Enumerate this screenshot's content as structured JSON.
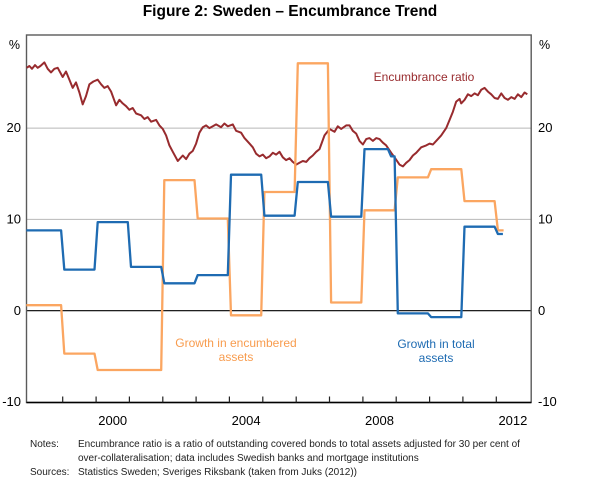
{
  "title": "Figure 2: Sweden – Encumbrance Trend",
  "chart_data": {
    "type": "line",
    "x_axis": {
      "min": 1997.91,
      "max": 2013.04,
      "tick_years": [
        1999,
        2000,
        2001,
        2002,
        2003,
        2004,
        2005,
        2006,
        2007,
        2008,
        2009,
        2010,
        2011,
        2012
      ],
      "labels": [
        "2000",
        "2004",
        "2008",
        "2012"
      ],
      "label_center_years": [
        2000.5,
        2004.5,
        2008.5,
        2012.5
      ]
    },
    "y_axis": {
      "min": -10,
      "max": 30.2,
      "unit": "%",
      "tick_labels": [
        "20",
        "10",
        "0",
        "-10"
      ],
      "tick_values": [
        20,
        10,
        0,
        -10
      ],
      "gridline_values": [
        20,
        10
      ],
      "zero_line": true
    },
    "series": [
      {
        "name": "Encumbrance ratio",
        "color": "#982b2e",
        "style": "line",
        "label_lines": [
          "Encumbrance ratio"
        ],
        "points": [
          [
            1997.92,
            26.6
          ],
          [
            1998.0,
            26.8
          ],
          [
            1998.08,
            26.5
          ],
          [
            1998.17,
            26.9
          ],
          [
            1998.25,
            26.6
          ],
          [
            1998.33,
            26.8
          ],
          [
            1998.45,
            27.2
          ],
          [
            1998.55,
            26.5
          ],
          [
            1998.65,
            26.1
          ],
          [
            1998.75,
            26.5
          ],
          [
            1998.85,
            26.6
          ],
          [
            1999.0,
            25.6
          ],
          [
            1999.1,
            26.2
          ],
          [
            1999.2,
            25.3
          ],
          [
            1999.3,
            24.4
          ],
          [
            1999.4,
            25.0
          ],
          [
            1999.5,
            23.9
          ],
          [
            1999.6,
            22.6
          ],
          [
            1999.7,
            23.5
          ],
          [
            1999.8,
            24.8
          ],
          [
            1999.92,
            25.1
          ],
          [
            2000.05,
            25.3
          ],
          [
            2000.15,
            24.8
          ],
          [
            2000.25,
            24.4
          ],
          [
            2000.35,
            24.6
          ],
          [
            2000.45,
            24.0
          ],
          [
            2000.6,
            22.5
          ],
          [
            2000.7,
            23.1
          ],
          [
            2000.8,
            22.7
          ],
          [
            2000.9,
            22.4
          ],
          [
            2001.0,
            22.0
          ],
          [
            2001.1,
            22.2
          ],
          [
            2001.2,
            21.6
          ],
          [
            2001.35,
            21.4
          ],
          [
            2001.45,
            21.0
          ],
          [
            2001.55,
            21.2
          ],
          [
            2001.65,
            20.7
          ],
          [
            2001.8,
            20.9
          ],
          [
            2001.9,
            20.3
          ],
          [
            2002.0,
            19.9
          ],
          [
            2002.1,
            19.2
          ],
          [
            2002.2,
            18.1
          ],
          [
            2002.3,
            17.4
          ],
          [
            2002.45,
            16.4
          ],
          [
            2002.6,
            17.0
          ],
          [
            2002.7,
            16.6
          ],
          [
            2002.8,
            17.2
          ],
          [
            2002.9,
            17.5
          ],
          [
            2003.0,
            18.3
          ],
          [
            2003.1,
            19.5
          ],
          [
            2003.2,
            20.1
          ],
          [
            2003.3,
            20.3
          ],
          [
            2003.4,
            20.0
          ],
          [
            2003.5,
            20.2
          ],
          [
            2003.6,
            20.4
          ],
          [
            2003.75,
            20.1
          ],
          [
            2003.85,
            20.5
          ],
          [
            2003.95,
            20.2
          ],
          [
            2004.1,
            20.4
          ],
          [
            2004.2,
            19.7
          ],
          [
            2004.35,
            19.5
          ],
          [
            2004.45,
            18.9
          ],
          [
            2004.6,
            18.3
          ],
          [
            2004.7,
            17.9
          ],
          [
            2004.8,
            17.2
          ],
          [
            2004.9,
            16.9
          ],
          [
            2005.0,
            17.1
          ],
          [
            2005.1,
            16.7
          ],
          [
            2005.2,
            16.9
          ],
          [
            2005.3,
            17.3
          ],
          [
            2005.4,
            17.1
          ],
          [
            2005.5,
            17.4
          ],
          [
            2005.6,
            16.8
          ],
          [
            2005.7,
            16.5
          ],
          [
            2005.8,
            16.7
          ],
          [
            2005.9,
            16.3
          ],
          [
            2006.0,
            16.0
          ],
          [
            2006.1,
            16.2
          ],
          [
            2006.2,
            16.4
          ],
          [
            2006.3,
            16.3
          ],
          [
            2006.4,
            16.7
          ],
          [
            2006.5,
            17.0
          ],
          [
            2006.6,
            17.4
          ],
          [
            2006.7,
            17.7
          ],
          [
            2006.85,
            19.2
          ],
          [
            2007.0,
            19.9
          ],
          [
            2007.15,
            19.6
          ],
          [
            2007.25,
            20.2
          ],
          [
            2007.35,
            19.9
          ],
          [
            2007.5,
            20.3
          ],
          [
            2007.6,
            20.3
          ],
          [
            2007.7,
            19.7
          ],
          [
            2007.8,
            19.4
          ],
          [
            2007.9,
            18.6
          ],
          [
            2008.0,
            18.2
          ],
          [
            2008.1,
            18.8
          ],
          [
            2008.2,
            18.9
          ],
          [
            2008.3,
            18.6
          ],
          [
            2008.4,
            18.9
          ],
          [
            2008.5,
            18.8
          ],
          [
            2008.6,
            18.4
          ],
          [
            2008.7,
            18.1
          ],
          [
            2008.85,
            17.3
          ],
          [
            2008.95,
            16.8
          ],
          [
            2009.1,
            16.0
          ],
          [
            2009.2,
            15.8
          ],
          [
            2009.3,
            16.2
          ],
          [
            2009.4,
            16.5
          ],
          [
            2009.5,
            17.0
          ],
          [
            2009.6,
            17.3
          ],
          [
            2009.75,
            17.9
          ],
          [
            2009.9,
            18.1
          ],
          [
            2010.0,
            18.3
          ],
          [
            2010.1,
            18.2
          ],
          [
            2010.2,
            18.6
          ],
          [
            2010.35,
            19.2
          ],
          [
            2010.5,
            20.0
          ],
          [
            2010.6,
            20.9
          ],
          [
            2010.7,
            21.8
          ],
          [
            2010.8,
            22.9
          ],
          [
            2010.9,
            23.2
          ],
          [
            2010.95,
            22.7
          ],
          [
            2011.05,
            23.1
          ],
          [
            2011.15,
            23.7
          ],
          [
            2011.25,
            23.5
          ],
          [
            2011.35,
            23.8
          ],
          [
            2011.45,
            23.6
          ],
          [
            2011.55,
            24.2
          ],
          [
            2011.65,
            24.4
          ],
          [
            2011.75,
            24.0
          ],
          [
            2011.85,
            23.7
          ],
          [
            2011.95,
            23.3
          ],
          [
            2012.05,
            23.2
          ],
          [
            2012.15,
            23.8
          ],
          [
            2012.25,
            23.3
          ],
          [
            2012.35,
            23.1
          ],
          [
            2012.45,
            23.4
          ],
          [
            2012.55,
            23.2
          ],
          [
            2012.65,
            23.7
          ],
          [
            2012.75,
            23.4
          ],
          [
            2012.85,
            23.9
          ],
          [
            2012.93,
            23.7
          ]
        ]
      },
      {
        "name": "Growth in encumbered assets",
        "color": "#fba661",
        "style": "step",
        "label_lines": [
          "Growth in encumbered",
          "assets"
        ],
        "step_boundaries": [
          1997.91,
          1999,
          2000,
          2001,
          2002,
          2003,
          2004,
          2005,
          2006,
          2007,
          2008,
          2009,
          2010,
          2011,
          2012,
          2012.22
        ],
        "step_values": [
          0.6,
          -4.7,
          -6.5,
          -6.5,
          14.3,
          10.1,
          -0.5,
          13.0,
          27.1,
          0.9,
          11.0,
          14.6,
          15.5,
          12.0,
          8.8
        ]
      },
      {
        "name": "Growth in total assets",
        "color": "#1e6bb2",
        "style": "step",
        "label_lines": [
          "Growth in total",
          "assets"
        ],
        "step_boundaries": [
          1997.91,
          1999,
          2000,
          2001,
          2002,
          2003,
          2004,
          2005,
          2006,
          2007,
          2008,
          2008.8,
          2009,
          2010,
          2011,
          2012,
          2012.2
        ],
        "step_values": [
          8.8,
          4.5,
          9.7,
          4.8,
          3.0,
          3.9,
          14.9,
          10.4,
          14.1,
          10.3,
          17.7,
          16.9,
          -0.3,
          -0.7,
          9.2,
          8.4
        ]
      }
    ]
  },
  "notes": {
    "notes_label": "Notes:",
    "note_line1": "Encumbrance ratio is a ratio of outstanding covered bonds to total assets adjusted for 30 per cent of",
    "note_line2": "over-collateralisation; data includes Swedish banks and mortgage institutions",
    "sources_label": "Sources:",
    "sources_text": "Statistics Sweden; Sveriges Riksbank (taken from Juks (2012))"
  }
}
